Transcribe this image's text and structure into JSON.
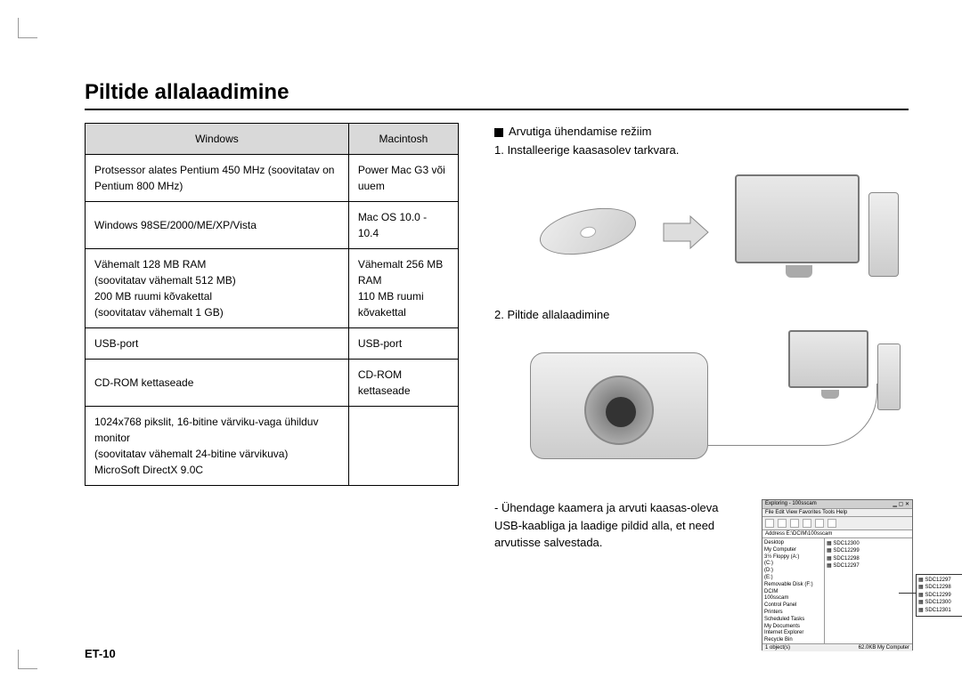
{
  "heading": "Piltide allalaadimine",
  "table": {
    "headers": [
      "Windows",
      "Macintosh"
    ],
    "rows": [
      [
        "Protsessor alates Pentium 450 MHz (soovitatav on Pentium 800 MHz)",
        "Power Mac G3 või uuem"
      ],
      [
        "Windows 98SE/2000/ME/XP/Vista",
        "Mac OS 10.0 - 10.4"
      ],
      [
        "Vähemalt 128 MB RAM\n(soovitatav vähemalt 512 MB)\n200 MB ruumi kõvakettal\n(soovitatav vähemalt 1 GB)",
        "Vähemalt 256 MB RAM\n110 MB ruumi kõvakettal"
      ],
      [
        "USB-port",
        "USB-port"
      ],
      [
        "CD-ROM kettaseade",
        "CD-ROM kettaseade"
      ],
      [
        "1024x768 pikslit, 16-bitine värviku-vaga ühilduv monitor\n(soovitatav vähemalt 24-bitine värvikuva)\nMicroSoft DirectX 9.0C",
        ""
      ]
    ]
  },
  "section_title": "Arvutiga ühendamise režiim",
  "step1": "1. Installeerige kaasasolev tarkvara.",
  "step2": "2. Piltide allalaadimine",
  "caption": "- Ühendage kaamera ja arvuti kaasas-oleva USB-kaabliga ja laadige pildid alla, et need arvutisse salvestada.",
  "explorer": {
    "title": "Exploring - 100sscam",
    "menu": "File  Edit  View  Favorites  Tools  Help",
    "address": "Address  E:\\DCIM\\100sscam",
    "tree": [
      "Desktop",
      " My Computer",
      "  3½ Floppy (A:)",
      "  (C:)",
      "  (D:)",
      "  (E:)",
      "  Removable Disk (F:)",
      "   DCIM",
      "    100sscam",
      "  Control Panel",
      "  Printers",
      "  Scheduled Tasks",
      "  My Documents",
      "  Internet Explorer",
      " Recycle Bin"
    ],
    "files": [
      "SDC12297",
      "SDC12298",
      "SDC12299",
      "SDC12300"
    ],
    "callout": [
      "SDC12297",
      "SDC12298",
      "SDC12299",
      "SDC12300",
      "SDC12301"
    ],
    "status_left": "1 object(s)",
    "status_right": "62.0KB   My Computer"
  },
  "footer": "ET-10"
}
